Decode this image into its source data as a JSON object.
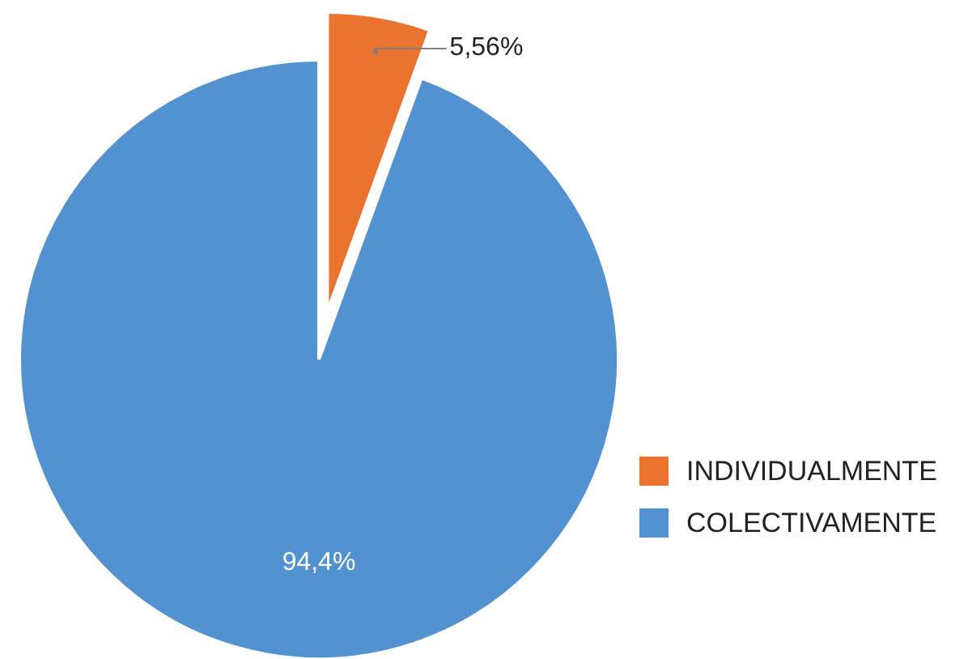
{
  "chart_data": {
    "type": "pie",
    "categories": [
      "INDIVIDUALMENTE",
      "COLECTIVAMENTE"
    ],
    "values": [
      5.56,
      94.4
    ],
    "colors": [
      "#ea7330",
      "#5292d0"
    ],
    "value_labels": [
      "5,56%",
      "94,4%"
    ],
    "legend": "right"
  }
}
